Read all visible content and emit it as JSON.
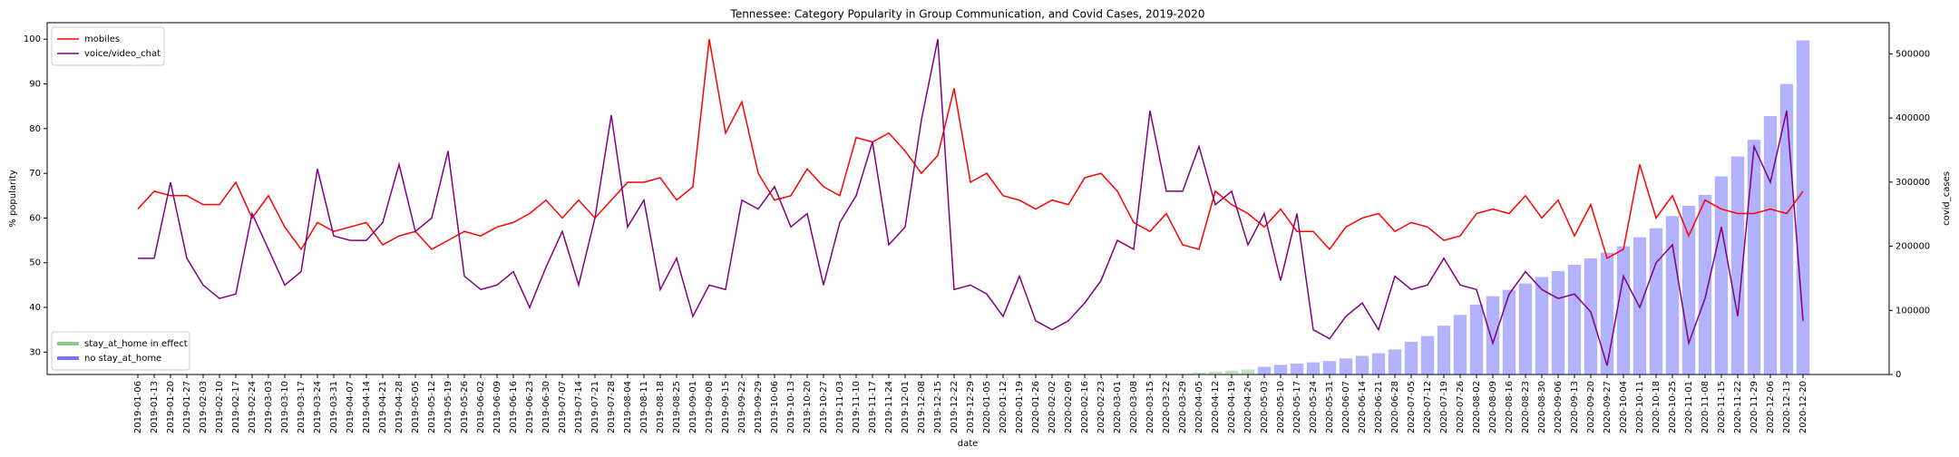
{
  "chart_data": {
    "type": "line",
    "title": "Tennessee: Category Popularity in Group Communication, and Covid Cases, 2019-2020",
    "x_label": "date",
    "y_label": "% popularity",
    "y2_label": "covid_cases",
    "categories": [
      "2019-01-06",
      "2019-01-13",
      "2019-01-20",
      "2019-01-27",
      "2019-02-03",
      "2019-02-10",
      "2019-02-17",
      "2019-02-24",
      "2019-03-03",
      "2019-03-10",
      "2019-03-17",
      "2019-03-24",
      "2019-03-31",
      "2019-04-07",
      "2019-04-14",
      "2019-04-21",
      "2019-04-28",
      "2019-05-05",
      "2019-05-12",
      "2019-05-19",
      "2019-05-26",
      "2019-06-02",
      "2019-06-09",
      "2019-06-16",
      "2019-06-23",
      "2019-06-30",
      "2019-07-07",
      "2019-07-14",
      "2019-07-21",
      "2019-07-28",
      "2019-08-04",
      "2019-08-11",
      "2019-08-18",
      "2019-08-25",
      "2019-09-01",
      "2019-09-08",
      "2019-09-15",
      "2019-09-22",
      "2019-09-29",
      "2019-10-06",
      "2019-10-13",
      "2019-10-20",
      "2019-10-27",
      "2019-11-03",
      "2019-11-10",
      "2019-11-17",
      "2019-11-24",
      "2019-12-01",
      "2019-12-08",
      "2019-12-15",
      "2019-12-22",
      "2019-12-29",
      "2020-01-05",
      "2020-01-12",
      "2020-01-19",
      "2020-01-26",
      "2020-02-02",
      "2020-02-09",
      "2020-02-16",
      "2020-02-23",
      "2020-03-01",
      "2020-03-08",
      "2020-03-15",
      "2020-03-22",
      "2020-03-29",
      "2020-04-05",
      "2020-04-12",
      "2020-04-19",
      "2020-04-26",
      "2020-05-03",
      "2020-05-10",
      "2020-05-17",
      "2020-05-24",
      "2020-05-31",
      "2020-06-07",
      "2020-06-14",
      "2020-06-21",
      "2020-06-28",
      "2020-07-05",
      "2020-07-12",
      "2020-07-19",
      "2020-07-26",
      "2020-08-02",
      "2020-08-09",
      "2020-08-16",
      "2020-08-23",
      "2020-08-30",
      "2020-09-06",
      "2020-09-13",
      "2020-09-20",
      "2020-09-27",
      "2020-10-04",
      "2020-10-11",
      "2020-10-18",
      "2020-10-25",
      "2020-11-01",
      "2020-11-08",
      "2020-11-15",
      "2020-11-22",
      "2020-11-29",
      "2020-12-06",
      "2020-12-13",
      "2020-12-20"
    ],
    "series": [
      {
        "name": "mobiles",
        "color": "#ff0000",
        "type": "line",
        "values": [
          62,
          66,
          65,
          65,
          63,
          63,
          68,
          60,
          65,
          58,
          53,
          59,
          57,
          58,
          59,
          54,
          56,
          57,
          53,
          55,
          57,
          56,
          58,
          59,
          61,
          64,
          60,
          64,
          60,
          64,
          68,
          68,
          69,
          64,
          67,
          100,
          79,
          86,
          70,
          64,
          65,
          71,
          67,
          65,
          78,
          77,
          79,
          75,
          70,
          74,
          89,
          68,
          70,
          65,
          64,
          62,
          64,
          63,
          69,
          70,
          66,
          59,
          57,
          61,
          54,
          53,
          66,
          63,
          61,
          58,
          62,
          57,
          57,
          53,
          58,
          60,
          61,
          57,
          59,
          58,
          55,
          56,
          61,
          62,
          61,
          65,
          60,
          64,
          56,
          63,
          51,
          53,
          72,
          60,
          65,
          56,
          64,
          62,
          61,
          61,
          62,
          61,
          66
        ]
      },
      {
        "name": "voice/video_chat",
        "color": "#800080",
        "type": "line",
        "values": [
          51,
          51,
          68,
          51,
          45,
          42,
          43,
          61,
          53,
          45,
          48,
          71,
          56,
          55,
          55,
          59,
          72,
          57,
          60,
          75,
          47,
          44,
          45,
          48,
          40,
          49,
          57,
          45,
          60,
          83,
          58,
          64,
          44,
          51,
          38,
          45,
          44,
          64,
          62,
          67,
          58,
          61,
          45,
          59,
          65,
          77,
          54,
          58,
          82,
          100,
          44,
          45,
          43,
          38,
          47,
          37,
          35,
          37,
          41,
          46,
          55,
          53,
          84,
          66,
          66,
          76,
          63,
          66,
          54,
          61,
          46,
          61,
          35,
          33,
          38,
          41,
          35,
          47,
          44,
          45,
          51,
          45,
          44,
          32,
          43,
          48,
          44,
          42,
          43,
          39,
          27,
          47,
          40,
          50,
          54,
          32,
          42,
          58,
          38,
          76,
          68,
          84,
          37
        ]
      },
      {
        "name": "stay_at_home in effect",
        "color": "#2ca02c",
        "type": "bar",
        "axis": "y2",
        "values": [
          null,
          null,
          null,
          null,
          null,
          null,
          null,
          null,
          null,
          null,
          null,
          null,
          null,
          null,
          null,
          null,
          null,
          null,
          null,
          null,
          null,
          null,
          null,
          null,
          null,
          null,
          null,
          null,
          null,
          null,
          null,
          null,
          null,
          null,
          null,
          null,
          null,
          null,
          null,
          null,
          null,
          null,
          null,
          null,
          null,
          null,
          null,
          null,
          null,
          null,
          null,
          null,
          null,
          null,
          null,
          null,
          null,
          null,
          null,
          null,
          null,
          null,
          null,
          null,
          1000,
          3000,
          4500,
          6000,
          8000,
          null,
          null,
          null,
          null,
          null,
          null,
          null,
          null,
          null,
          null,
          null,
          null,
          null,
          null,
          null,
          null,
          null,
          null,
          null,
          null,
          null,
          null,
          null,
          null,
          null,
          null,
          null,
          null,
          null,
          null,
          null,
          null,
          null,
          null
        ]
      },
      {
        "name": "no stay_at_home",
        "color": "#0000ff",
        "type": "bar",
        "axis": "y2",
        "values": [
          null,
          null,
          null,
          null,
          null,
          null,
          null,
          null,
          null,
          null,
          null,
          null,
          null,
          null,
          null,
          null,
          null,
          null,
          null,
          null,
          null,
          null,
          null,
          null,
          null,
          null,
          null,
          null,
          null,
          null,
          null,
          null,
          null,
          null,
          null,
          null,
          null,
          null,
          null,
          null,
          null,
          null,
          null,
          null,
          null,
          null,
          null,
          null,
          null,
          null,
          null,
          null,
          null,
          null,
          null,
          null,
          null,
          null,
          null,
          null,
          null,
          null,
          null,
          null,
          null,
          null,
          null,
          null,
          null,
          12000,
          15000,
          17000,
          19000,
          21000,
          25000,
          29000,
          33000,
          39000,
          51000,
          60000,
          76000,
          93000,
          109000,
          122000,
          132000,
          142000,
          152000,
          161000,
          171000,
          181000,
          190000,
          200000,
          214000,
          228000,
          247000,
          263000,
          280000,
          309000,
          340000,
          366000,
          403000,
          453000,
          521000
        ]
      }
    ],
    "ylim": [
      25,
      103.7
    ],
    "yticks": [
      30,
      40,
      50,
      60,
      70,
      80,
      90,
      100
    ],
    "y2lim": [
      0,
      548600
    ],
    "y2ticks": [
      0,
      100000,
      200000,
      300000,
      400000,
      500000
    ],
    "legend": "upper left",
    "bar_legend": "lower left"
  }
}
